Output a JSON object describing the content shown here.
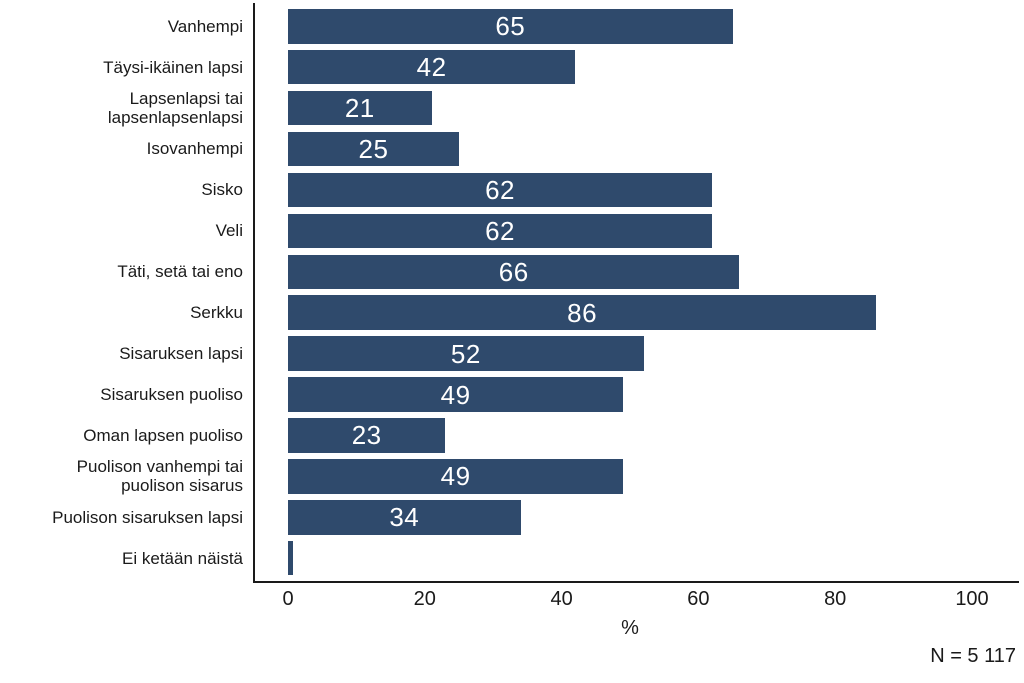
{
  "chart_data": {
    "type": "bar",
    "orientation": "horizontal",
    "title": "",
    "xlabel": "%",
    "ylabel": "",
    "xlim": [
      0,
      100
    ],
    "xticks": [
      0,
      20,
      40,
      60,
      80,
      100
    ],
    "grid": "off",
    "legend": "none",
    "bar_color": "#2F4A6C",
    "axis_color": "#1a1a1a",
    "value_label_color": "#ffffff",
    "note": "N = 5 117",
    "categories": [
      "Vanhempi",
      "Täysi-ikäinen lapsi",
      "Lapsenlapsi tai\nlapsenlapsenlapsi",
      "Isovanhempi",
      "Sisko",
      "Veli",
      "Täti, setä tai eno",
      "Serkku",
      "Sisaruksen lapsi",
      "Sisaruksen puoliso",
      "Oman lapsen puoliso",
      "Puolison vanhempi tai\npuolison sisarus",
      "Puolison sisaruksen lapsi",
      "Ei ketään näistä"
    ],
    "values": [
      65,
      42,
      21,
      25,
      62,
      62,
      66,
      86,
      52,
      49,
      23,
      49,
      34,
      0.7
    ],
    "value_labels": [
      "65",
      "42",
      "21",
      "25",
      "62",
      "62",
      "66",
      "86",
      "52",
      "49",
      "23",
      "49",
      "34",
      ""
    ]
  }
}
